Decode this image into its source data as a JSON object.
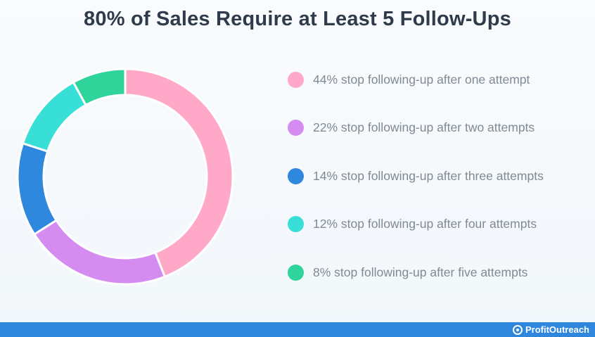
{
  "title": "80% of Sales Require at Least 5 Follow-Ups",
  "brand": {
    "name": "ProfitOutreach",
    "icon": "profitoutreach-logo-icon"
  },
  "chart_data": {
    "type": "pie",
    "donut": true,
    "title": "80% of Sales Require at Least 5 Follow-Ups",
    "legend_position": "right",
    "series": [
      {
        "value": 44,
        "label": "44% stop following-up after one attempt",
        "color": "#ffa8c8"
      },
      {
        "value": 22,
        "label": "22% stop following-up after two attempts",
        "color": "#d58cf0"
      },
      {
        "value": 14,
        "label": "14% stop following-up after three attempts",
        "color": "#2e88dd"
      },
      {
        "value": 12,
        "label": "12% stop following-up after four attempts",
        "color": "#38dfd6"
      },
      {
        "value": 8,
        "label": "8% stop following-up after five attempts",
        "color": "#2fd49a"
      }
    ]
  }
}
